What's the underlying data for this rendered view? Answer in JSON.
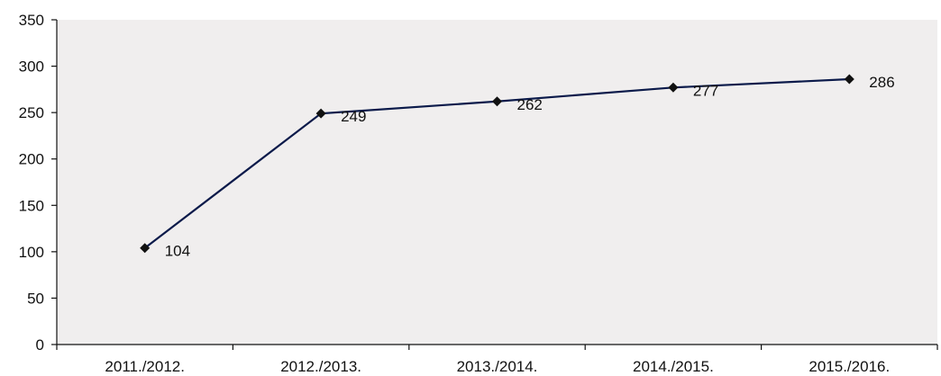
{
  "chart_data": {
    "type": "line",
    "categories": [
      "2011./2012.",
      "2012./2013.",
      "2013./2014.",
      "2014./2015.",
      "2015./2016."
    ],
    "series": [
      {
        "values": [
          104,
          249,
          262,
          277,
          286
        ]
      }
    ],
    "data_labels": [
      "104",
      "249",
      "262",
      "277",
      "286"
    ],
    "y_ticks": [
      "0",
      "50",
      "100",
      "150",
      "200",
      "250",
      "300",
      "350"
    ],
    "ylim": [
      0,
      350
    ],
    "title": "",
    "xlabel": "",
    "ylabel": "",
    "grid": false,
    "legend": "none",
    "colors": {
      "line": "#0b1a4a",
      "marker": "#111111",
      "plot_background": "#f0eeee",
      "axis": "#111111"
    },
    "marker": "diamond"
  }
}
